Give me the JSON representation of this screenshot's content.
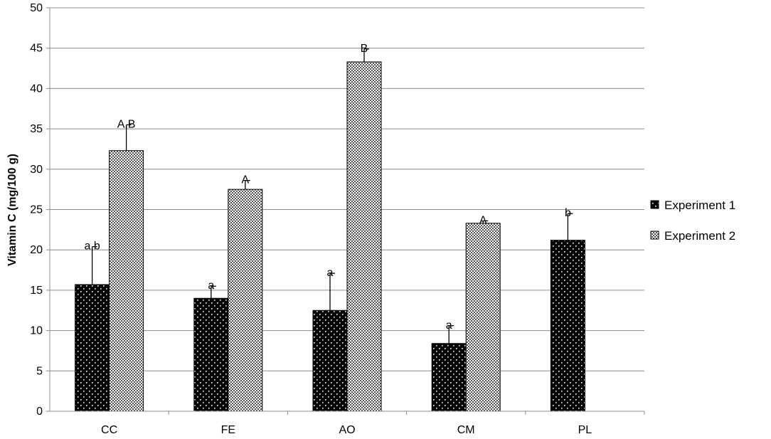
{
  "chart_data": {
    "type": "bar",
    "title": "",
    "xlabel": "",
    "ylabel": "Vitamin C (mg/100 g)",
    "ylim": [
      0,
      50
    ],
    "yticks": [
      "0",
      "5",
      "10",
      "15",
      "20",
      "25",
      "30",
      "35",
      "40",
      "45",
      "50"
    ],
    "categories": [
      "CC",
      "FE",
      "AO",
      "CM",
      "PL"
    ],
    "grid": true,
    "legend_position": "right",
    "series": [
      {
        "name": "Experiment 1",
        "pattern": "dark-dots",
        "fill_color": "#000000",
        "values": [
          15.7,
          14.0,
          12.5,
          8.4,
          21.2
        ],
        "errors": [
          4.7,
          1.5,
          4.6,
          2.2,
          3.3
        ],
        "labels": [
          "a,b",
          "a",
          "a",
          "a",
          "b"
        ]
      },
      {
        "name": "Experiment 2",
        "pattern": "light-crosshatch",
        "fill_color": "#ffffff",
        "values": [
          32.3,
          27.5,
          43.3,
          23.3,
          null
        ],
        "errors": [
          3.2,
          1.1,
          1.6,
          0.3,
          null
        ],
        "labels": [
          "A,B",
          "A",
          "B",
          "A",
          null
        ]
      }
    ]
  },
  "colors": {
    "grid": "#8c8c8c",
    "axis": "#8c8c8c",
    "bar_outline": "#000000"
  }
}
